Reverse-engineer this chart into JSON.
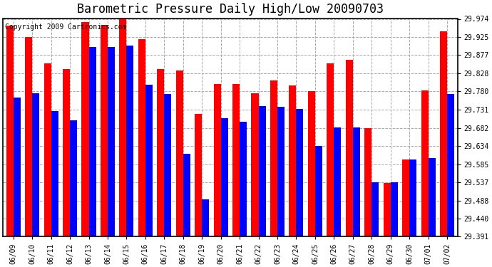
{
  "title": "Barometric Pressure Daily High/Low 20090703",
  "copyright": "Copyright 2009 Cartronics.com",
  "dates": [
    "06/09",
    "06/10",
    "06/11",
    "06/12",
    "06/13",
    "06/14",
    "06/15",
    "06/16",
    "06/17",
    "06/18",
    "06/19",
    "06/20",
    "06/21",
    "06/22",
    "06/23",
    "06/24",
    "06/25",
    "06/26",
    "06/27",
    "06/28",
    "06/29",
    "06/30",
    "07/01",
    "07/02"
  ],
  "highs": [
    29.955,
    29.925,
    29.855,
    29.84,
    29.965,
    29.958,
    29.974,
    29.92,
    29.84,
    29.835,
    29.72,
    29.8,
    29.8,
    29.775,
    29.81,
    29.795,
    29.78,
    29.855,
    29.865,
    29.682,
    29.535,
    29.598,
    29.783,
    29.94
  ],
  "lows": [
    29.763,
    29.775,
    29.728,
    29.703,
    29.898,
    29.898,
    29.903,
    29.798,
    29.773,
    29.612,
    29.49,
    29.708,
    29.698,
    29.74,
    29.738,
    29.732,
    29.633,
    29.683,
    29.683,
    29.537,
    29.537,
    29.598,
    29.602,
    29.773
  ],
  "high_color": "#FF0000",
  "low_color": "#0000FF",
  "bg_color": "#FFFFFF",
  "grid_color": "#AAAAAA",
  "yticks": [
    29.391,
    29.44,
    29.488,
    29.537,
    29.585,
    29.634,
    29.682,
    29.731,
    29.78,
    29.828,
    29.877,
    29.925,
    29.974
  ],
  "ylim_min": 29.391,
  "ylim_max": 29.974,
  "bar_width": 0.38,
  "title_fontsize": 12,
  "tick_fontsize": 7,
  "copyright_fontsize": 7
}
